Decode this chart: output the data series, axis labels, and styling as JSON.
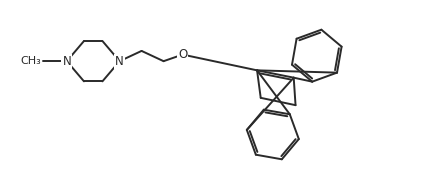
{
  "bg_color": "#ffffff",
  "line_color": "#2a2a2a",
  "line_width": 1.4,
  "font_size": 8.5,
  "xlim": [
    0,
    10.5
  ],
  "ylim": [
    0,
    5.2
  ],
  "figsize": [
    4.21,
    1.92
  ],
  "dpi": 100
}
